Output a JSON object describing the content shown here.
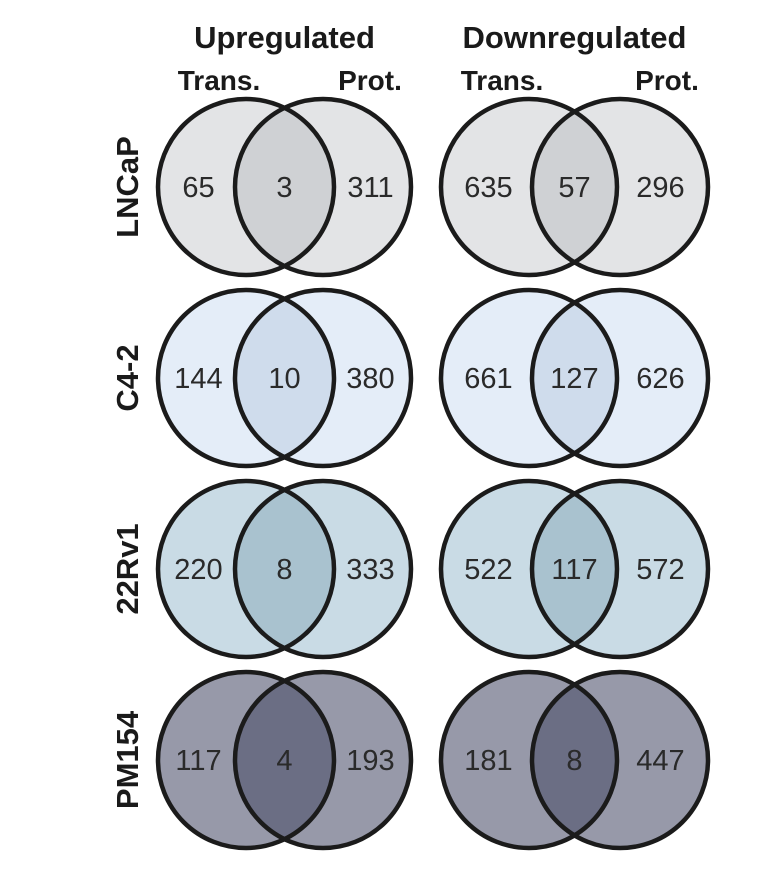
{
  "columns": [
    {
      "title": "Upregulated",
      "left_label": "Trans.",
      "right_label": "Prot."
    },
    {
      "title": "Downregulated",
      "left_label": "Trans.",
      "right_label": "Prot."
    }
  ],
  "rows": [
    {
      "label": "LNCaP",
      "colors": {
        "circle": "#e3e4e6",
        "overlap": "#cfd1d4"
      },
      "venns": [
        {
          "left_only": "65",
          "overlap": "3",
          "right_only": "311"
        },
        {
          "left_only": "635",
          "overlap": "57",
          "right_only": "296"
        }
      ]
    },
    {
      "label": "C4-2",
      "colors": {
        "circle": "#e4edf8",
        "overlap": "#cfdcec"
      },
      "venns": [
        {
          "left_only": "144",
          "overlap": "10",
          "right_only": "380"
        },
        {
          "left_only": "661",
          "overlap": "127",
          "right_only": "626"
        }
      ]
    },
    {
      "label": "22Rv1",
      "colors": {
        "circle": "#c9dbe5",
        "overlap": "#a9c2cf"
      },
      "venns": [
        {
          "left_only": "220",
          "overlap": "8",
          "right_only": "333"
        },
        {
          "left_only": "522",
          "overlap": "117",
          "right_only": "572"
        }
      ]
    },
    {
      "label": "PM154",
      "colors": {
        "circle": "#9799a9",
        "overlap": "#6b6e84"
      },
      "venns": [
        {
          "left_only": "117",
          "overlap": "4",
          "right_only": "193"
        },
        {
          "left_only": "181",
          "overlap": "8",
          "right_only": "447"
        }
      ]
    }
  ]
}
